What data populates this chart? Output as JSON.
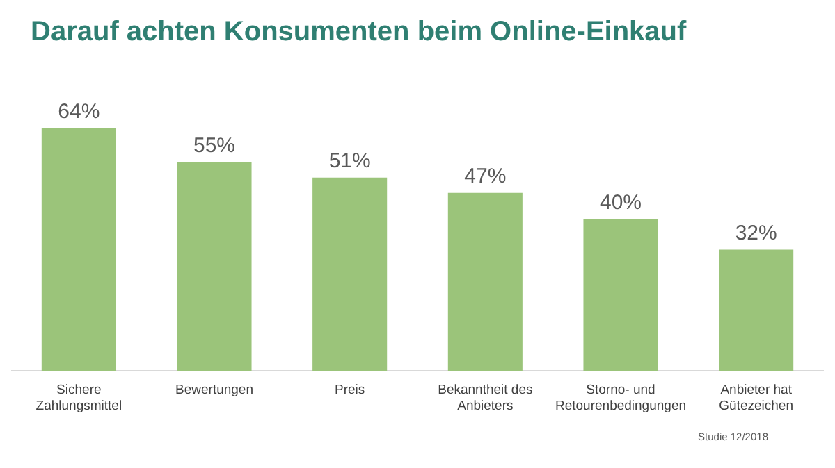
{
  "chart_data": {
    "type": "bar",
    "title": "Darauf achten Konsumenten beim Online-Einkauf",
    "categories": [
      "Sichere Zahlungsmittel",
      "Bewertungen",
      "Preis",
      "Bekanntheit des Anbieters",
      "Storno- und Retourenbedingungen",
      "Anbieter hat Gütezeichen"
    ],
    "values": [
      64,
      55,
      51,
      47,
      40,
      32
    ],
    "value_labels": [
      "64%",
      "55%",
      "51%",
      "47%",
      "40%",
      "32%"
    ],
    "color": "#9bc47a",
    "grid": false,
    "legend": false,
    "annotations": [
      "Studie 12/2018"
    ]
  }
}
